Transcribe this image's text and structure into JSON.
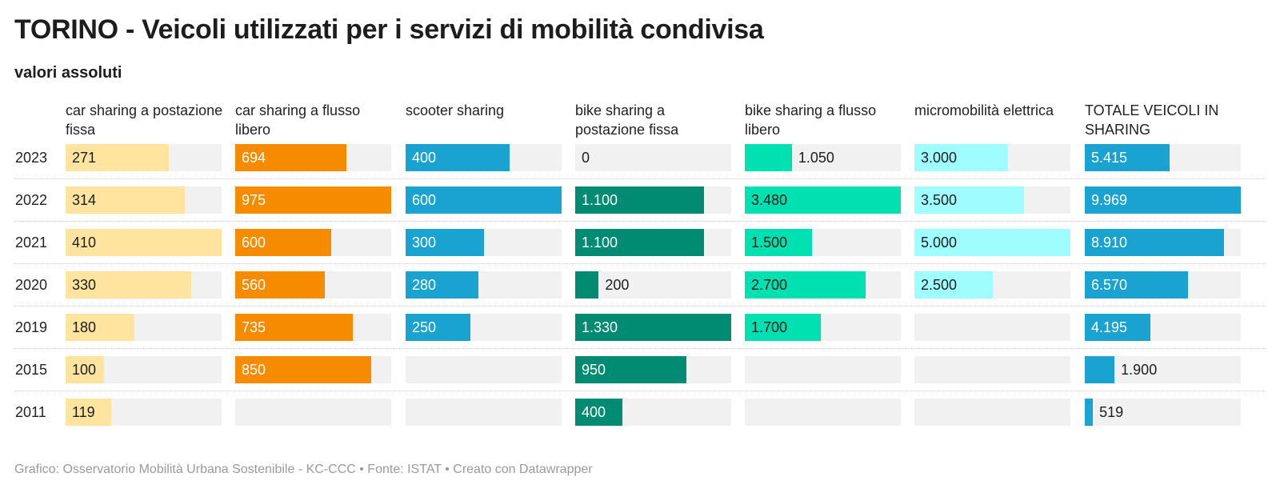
{
  "title": "TORINO - Veicoli utilizzati per i servizi di mobilità condivisa",
  "subtitle": "valori assoluti",
  "footer": "Grafico: Osservatorio Mobilità Urbana Sostenibile - KC-CCC • Fonte: ISTAT • Creato con Datawrapper",
  "chart_data": {
    "type": "bar",
    "categories": [
      "2023",
      "2022",
      "2021",
      "2020",
      "2019",
      "2015",
      "2011"
    ],
    "series": [
      {
        "name": "car sharing a postazione fissa",
        "color": "#ffe4a0",
        "values": [
          271,
          314,
          410,
          330,
          180,
          100,
          119
        ],
        "labels": [
          "271",
          "314",
          "410",
          "330",
          "180",
          "100",
          "119"
        ]
      },
      {
        "name": "car sharing a flusso libero",
        "color": "#f78b00",
        "values": [
          694,
          975,
          600,
          560,
          735,
          850,
          null
        ],
        "labels": [
          "694",
          "975",
          "600",
          "560",
          "735",
          "850",
          ""
        ]
      },
      {
        "name": "scooter sharing",
        "color": "#1aa3d1",
        "values": [
          400,
          600,
          300,
          280,
          250,
          null,
          null
        ],
        "labels": [
          "400",
          "600",
          "300",
          "280",
          "250",
          "",
          ""
        ]
      },
      {
        "name": "bike sharing a postazione fissa",
        "color": "#008b72",
        "values": [
          0,
          1100,
          1100,
          200,
          1330,
          950,
          400
        ],
        "labels": [
          "0",
          "1.100",
          "1.100",
          "200",
          "1.330",
          "950",
          "400"
        ]
      },
      {
        "name": "bike sharing a flusso libero",
        "color": "#00e0b0",
        "values": [
          1050,
          3480,
          1500,
          2700,
          1700,
          null,
          null
        ],
        "labels": [
          "1.050",
          "3.480",
          "1.500",
          "2.700",
          "1.700",
          "",
          ""
        ]
      },
      {
        "name": "micromobilità elettrica",
        "color": "#a0fdff",
        "values": [
          3000,
          3500,
          5000,
          2500,
          null,
          null,
          null
        ],
        "labels": [
          "3.000",
          "3.500",
          "5.000",
          "2.500",
          "",
          "",
          ""
        ]
      },
      {
        "name": "TOTALE VEICOLI IN SHARING",
        "color": "#1aa3d1",
        "values": [
          5415,
          9969,
          8910,
          6570,
          4195,
          1900,
          519
        ],
        "labels": [
          "5.415",
          "9.969",
          "8.910",
          "6.570",
          "4.195",
          "1.900",
          "519"
        ]
      }
    ]
  }
}
